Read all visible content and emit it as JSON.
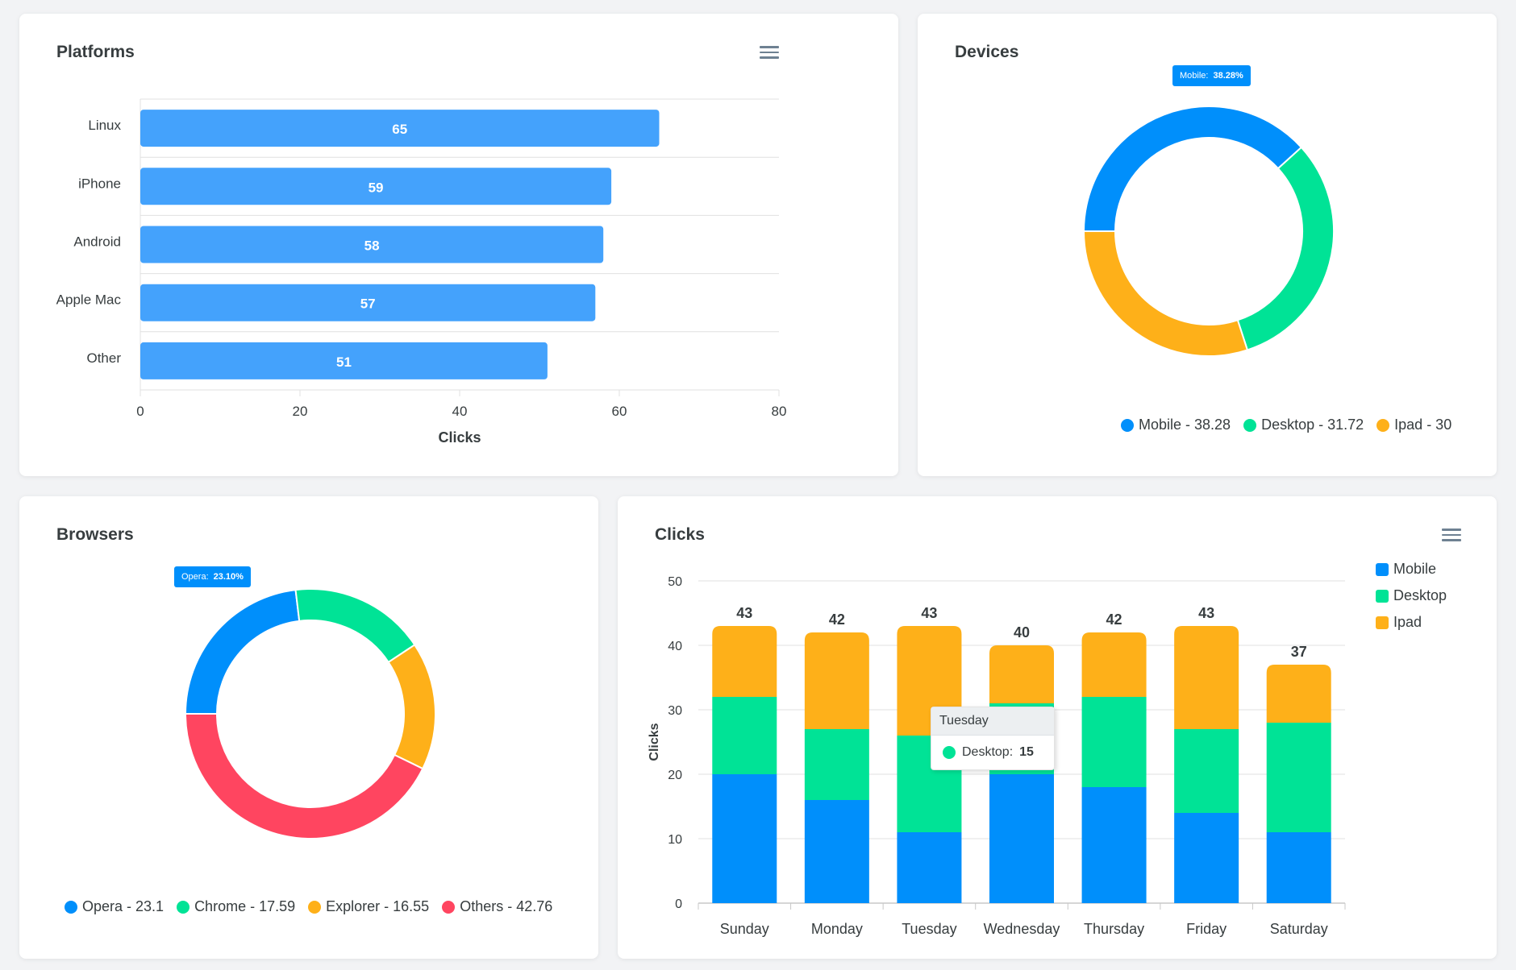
{
  "colors": {
    "blue": "#008ffb",
    "bar_blue": "#44a2fc",
    "green": "#00e396",
    "orange": "#feb019",
    "red": "#ff4560",
    "grid": "#e0e0e0",
    "text": "#373d3f"
  },
  "icons": {
    "menu": "hamburger-menu-icon"
  },
  "chart_data": [
    {
      "id": "platforms",
      "type": "bar",
      "orientation": "horizontal",
      "title": "Platforms",
      "categories": [
        "Linux",
        "iPhone",
        "Android",
        "Apple Mac",
        "Other"
      ],
      "values": [
        65,
        59,
        58,
        57,
        51
      ],
      "xlabel": "Clicks",
      "ylabel": "",
      "xlim": [
        0,
        80
      ],
      "xticks": [
        "0",
        "20",
        "40",
        "60",
        "80"
      ],
      "data_labels": true,
      "grid": true
    },
    {
      "id": "devices",
      "type": "pie",
      "variant": "donut",
      "title": "Devices",
      "labels": [
        "Mobile",
        "Desktop",
        "Ipad"
      ],
      "values": [
        38.28,
        31.72,
        30
      ],
      "legend_labels": [
        "Mobile - 38.28",
        "Desktop - 31.72",
        "Ipad - 30"
      ],
      "callout": {
        "label": "Mobile:",
        "value": "38.28%"
      },
      "legend": "bottom"
    },
    {
      "id": "browsers",
      "type": "pie",
      "variant": "donut",
      "title": "Browsers",
      "labels": [
        "Opera",
        "Chrome",
        "Explorer",
        "Others"
      ],
      "values": [
        23.1,
        17.59,
        16.55,
        42.76
      ],
      "legend_labels": [
        "Opera - 23.1",
        "Chrome - 17.59",
        "Explorer - 16.55",
        "Others - 42.76"
      ],
      "callout": {
        "label": "Opera:",
        "value": "23.10%"
      },
      "legend": "bottom"
    },
    {
      "id": "clicks",
      "type": "bar",
      "stacked": true,
      "title": "Clicks",
      "categories": [
        "Sunday",
        "Monday",
        "Tuesday",
        "Wednesday",
        "Thursday",
        "Friday",
        "Saturday"
      ],
      "series": [
        {
          "name": "Mobile",
          "values": [
            20,
            16,
            11,
            20,
            18,
            14,
            11
          ]
        },
        {
          "name": "Desktop",
          "values": [
            12,
            11,
            15,
            11,
            14,
            13,
            17
          ]
        },
        {
          "name": "Ipad",
          "values": [
            11,
            15,
            17,
            9,
            10,
            16,
            9
          ]
        }
      ],
      "totals": [
        43,
        42,
        43,
        40,
        42,
        43,
        37
      ],
      "ylabel": "Clicks",
      "xlabel": "",
      "ylim": [
        0,
        50
      ],
      "yticks": [
        "0",
        "10",
        "20",
        "30",
        "40",
        "50"
      ],
      "legend": "top-right",
      "tooltip": {
        "category": "Tuesday",
        "series": "Desktop:",
        "value": "15"
      }
    }
  ]
}
